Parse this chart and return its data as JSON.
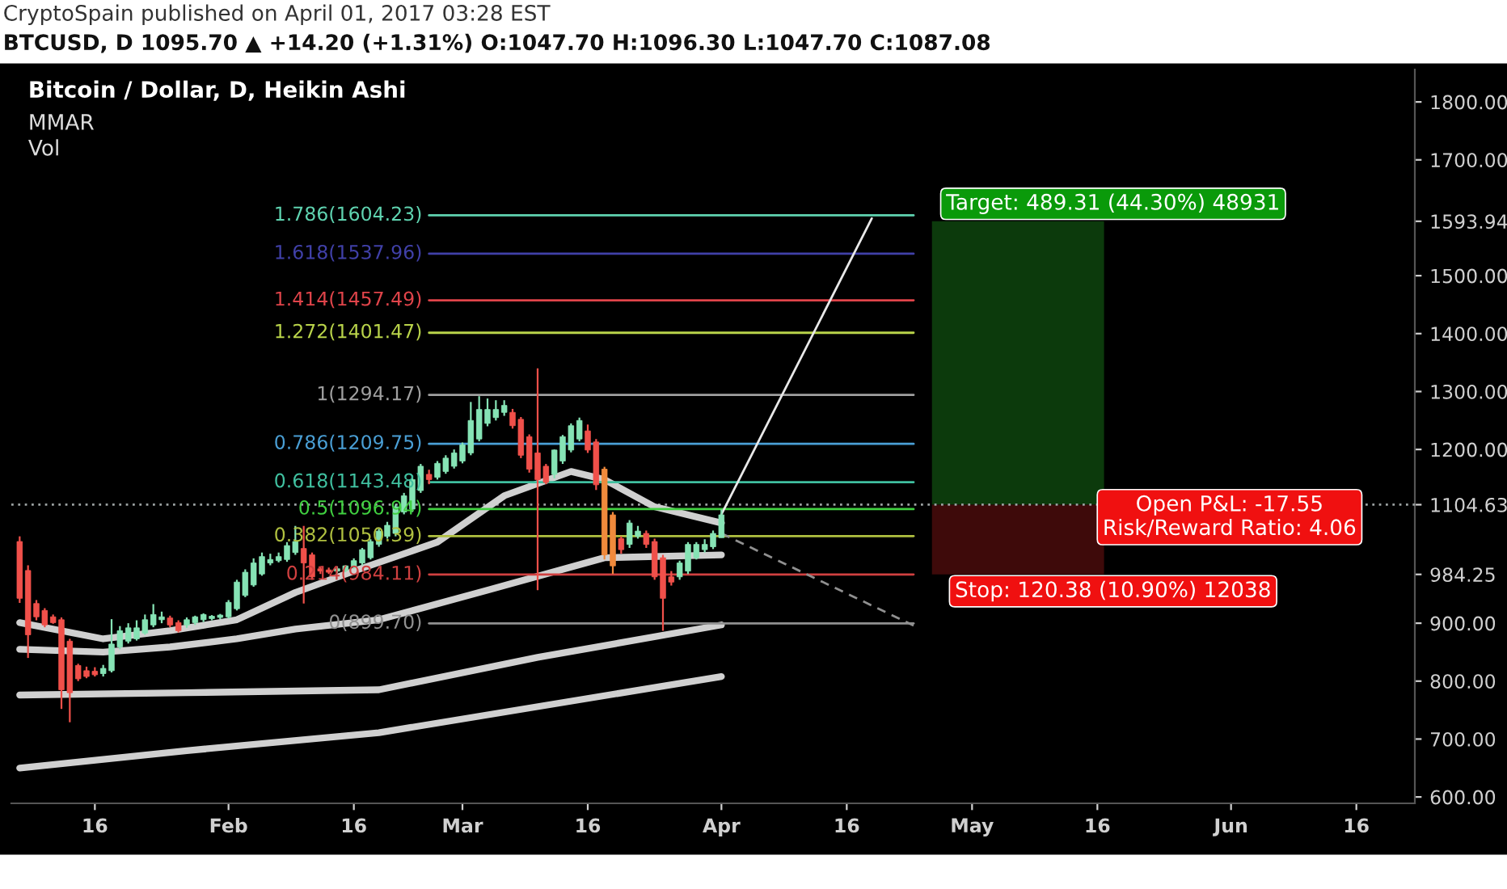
{
  "chart_data": {
    "type": "candlestick",
    "title": "Bitcoin / Dollar, D, Heikin Ashi",
    "x": [
      "2017-01-07",
      "2017-01-08",
      "2017-01-09",
      "2017-01-10",
      "2017-01-11",
      "2017-01-12",
      "2017-01-13",
      "2017-01-14",
      "2017-01-15",
      "2017-01-16",
      "2017-01-17",
      "2017-01-18",
      "2017-01-19",
      "2017-01-20",
      "2017-01-21",
      "2017-01-22",
      "2017-01-23",
      "2017-01-24",
      "2017-01-25",
      "2017-01-26",
      "2017-01-27",
      "2017-01-28",
      "2017-01-29",
      "2017-01-30",
      "2017-01-31",
      "2017-02-01",
      "2017-02-02",
      "2017-02-03",
      "2017-02-04",
      "2017-02-05",
      "2017-02-06",
      "2017-02-07",
      "2017-02-08",
      "2017-02-09",
      "2017-02-10",
      "2017-02-11",
      "2017-02-12",
      "2017-02-13",
      "2017-02-14",
      "2017-02-15",
      "2017-02-16",
      "2017-02-17",
      "2017-02-18",
      "2017-02-19",
      "2017-02-20",
      "2017-02-21",
      "2017-02-22",
      "2017-02-23",
      "2017-02-24",
      "2017-02-25",
      "2017-02-26",
      "2017-02-27",
      "2017-02-28",
      "2017-03-01",
      "2017-03-02",
      "2017-03-03",
      "2017-03-04",
      "2017-03-05",
      "2017-03-06",
      "2017-03-07",
      "2017-03-08",
      "2017-03-09",
      "2017-03-10",
      "2017-03-11",
      "2017-03-12",
      "2017-03-13",
      "2017-03-14",
      "2017-03-15",
      "2017-03-16",
      "2017-03-17",
      "2017-03-18",
      "2017-03-19",
      "2017-03-20",
      "2017-03-21",
      "2017-03-22",
      "2017-03-23",
      "2017-03-24",
      "2017-03-25",
      "2017-03-26",
      "2017-03-27",
      "2017-03-28",
      "2017-03-29",
      "2017-03-30",
      "2017-03-31",
      "2017-04-01"
    ],
    "ohlc": [
      [
        1041,
        1050,
        935,
        943
      ],
      [
        991,
        1000,
        840,
        880
      ],
      [
        934,
        940,
        905,
        911
      ],
      [
        922,
        926,
        893,
        897
      ],
      [
        911,
        915,
        899,
        901
      ],
      [
        906,
        910,
        752,
        785
      ],
      [
        869,
        873,
        729,
        780
      ],
      [
        827,
        830,
        800,
        804
      ],
      [
        818,
        825,
        805,
        808
      ],
      [
        817,
        824,
        808,
        811
      ],
      [
        813,
        828,
        808,
        822
      ],
      [
        818,
        907,
        815,
        864
      ],
      [
        859,
        895,
        855,
        887
      ],
      [
        869,
        900,
        865,
        892
      ],
      [
        873,
        905,
        870,
        892
      ],
      [
        883,
        915,
        880,
        906
      ],
      [
        897,
        933,
        893,
        915
      ],
      [
        906,
        920,
        900,
        911
      ],
      [
        909,
        913,
        893,
        897
      ],
      [
        901,
        905,
        884,
        887
      ],
      [
        897,
        910,
        892,
        906
      ],
      [
        901,
        913,
        897,
        911
      ],
      [
        906,
        917,
        902,
        915
      ],
      [
        908,
        914,
        905,
        912
      ],
      [
        910,
        916,
        907,
        914
      ],
      [
        911,
        940,
        908,
        936
      ],
      [
        925,
        975,
        922,
        971
      ],
      [
        948,
        993,
        945,
        988
      ],
      [
        966,
        1012,
        963,
        1004
      ],
      [
        985,
        1022,
        982,
        1015
      ],
      [
        1004,
        1020,
        1000,
        1010
      ],
      [
        1008,
        1022,
        1005,
        1015
      ],
      [
        1010,
        1040,
        1006,
        1034
      ],
      [
        1022,
        1068,
        1018,
        1041
      ],
      [
        1029,
        1068,
        934,
        1004
      ],
      [
        1018,
        1022,
        975,
        980
      ],
      [
        994,
        998,
        985,
        990
      ],
      [
        992,
        996,
        985,
        988
      ],
      [
        990,
        998,
        986,
        994
      ],
      [
        991,
        1000,
        988,
        999
      ],
      [
        997,
        1012,
        994,
        1008
      ],
      [
        1004,
        1030,
        1000,
        1027
      ],
      [
        1013,
        1045,
        1010,
        1041
      ],
      [
        1036,
        1063,
        1032,
        1059
      ],
      [
        1050,
        1075,
        1046,
        1069
      ],
      [
        1055,
        1105,
        1050,
        1101
      ],
      [
        1092,
        1125,
        1088,
        1120
      ],
      [
        1097,
        1155,
        1092,
        1148
      ],
      [
        1129,
        1175,
        1125,
        1171
      ],
      [
        1157,
        1165,
        1140,
        1148
      ],
      [
        1152,
        1180,
        1148,
        1176
      ],
      [
        1162,
        1190,
        1158,
        1185
      ],
      [
        1171,
        1200,
        1167,
        1194
      ],
      [
        1180,
        1212,
        1176,
        1208
      ],
      [
        1194,
        1282,
        1190,
        1250
      ],
      [
        1218,
        1292,
        1214,
        1269
      ],
      [
        1245,
        1288,
        1240,
        1269
      ],
      [
        1255,
        1285,
        1250,
        1269
      ],
      [
        1264,
        1285,
        1258,
        1276
      ],
      [
        1264,
        1270,
        1236,
        1241
      ],
      [
        1252,
        1256,
        1185,
        1190
      ],
      [
        1222,
        1226,
        1160,
        1166
      ],
      [
        1194,
        1340,
        957,
        1148
      ],
      [
        1171,
        1175,
        1140,
        1143
      ],
      [
        1157,
        1200,
        1150,
        1199
      ],
      [
        1180,
        1225,
        1175,
        1222
      ],
      [
        1199,
        1245,
        1195,
        1241
      ],
      [
        1218,
        1255,
        1214,
        1250
      ],
      [
        1232,
        1243,
        1194,
        1199
      ],
      [
        1213,
        1218,
        1130,
        1139
      ],
      [
        1166,
        1170,
        1010,
        1018
      ],
      [
        1087,
        1092,
        985,
        999
      ],
      [
        1046,
        1050,
        1020,
        1027
      ],
      [
        1036,
        1078,
        1030,
        1073
      ],
      [
        1050,
        1068,
        1046,
        1059
      ],
      [
        1055,
        1060,
        1030,
        1036
      ],
      [
        1041,
        1046,
        975,
        980
      ],
      [
        1013,
        1018,
        887,
        943
      ],
      [
        980,
        990,
        965,
        971
      ],
      [
        980,
        1008,
        975,
        1004
      ],
      [
        990,
        1040,
        985,
        1036
      ],
      [
        1013,
        1040,
        1010,
        1036
      ],
      [
        1027,
        1045,
        1022,
        1036
      ],
      [
        1032,
        1060,
        1028,
        1055
      ],
      [
        1047.7,
        1096.3,
        1047.7,
        1087.08
      ]
    ],
    "colors": [
      "#f0504a",
      "#f0504a",
      "#f0504a",
      "#f0504a",
      "#f0504a",
      "#f0504a",
      "#f0504a",
      "#f0504a",
      "#f0504a",
      "#f0504a",
      "#86e3b5",
      "#86e3b5",
      "#86e3b5",
      "#86e3b5",
      "#86e3b5",
      "#86e3b5",
      "#86e3b5",
      "#86e3b5",
      "#f0504a",
      "#f0504a",
      "#86e3b5",
      "#86e3b5",
      "#86e3b5",
      "#86e3b5",
      "#86e3b5",
      "#86e3b5",
      "#86e3b5",
      "#86e3b5",
      "#86e3b5",
      "#86e3b5",
      "#86e3b5",
      "#86e3b5",
      "#86e3b5",
      "#86e3b5",
      "#f0504a",
      "#f0504a",
      "#f0504a",
      "#f0504a",
      "#86e3b5",
      "#86e3b5",
      "#86e3b5",
      "#86e3b5",
      "#86e3b5",
      "#86e3b5",
      "#86e3b5",
      "#86e3b5",
      "#86e3b5",
      "#86e3b5",
      "#86e3b5",
      "#f0504a",
      "#86e3b5",
      "#86e3b5",
      "#86e3b5",
      "#86e3b5",
      "#86e3b5",
      "#86e3b5",
      "#86e3b5",
      "#86e3b5",
      "#86e3b5",
      "#f0504a",
      "#f0504a",
      "#f0504a",
      "#f0504a",
      "#f0504a",
      "#86e3b5",
      "#86e3b5",
      "#86e3b5",
      "#86e3b5",
      "#f0504a",
      "#f0504a",
      "#f08a3c",
      "#f08a3c",
      "#f0504a",
      "#86e3b5",
      "#86e3b5",
      "#f0504a",
      "#f0504a",
      "#f0504a",
      "#f0504a",
      "#86e3b5",
      "#86e3b5",
      "#86e3b5",
      "#86e3b5",
      "#86e3b5",
      "#86e3b5"
    ],
    "series": [
      {
        "type": "bar",
        "x": [
          "2017-05-06T12:00"
        ],
        "base": [
          1104.63
        ],
        "values": [
          489.31
        ],
        "color": "#0c3a0c"
      },
      {
        "type": "bar",
        "x": [
          "2017-05-06T12:00"
        ],
        "base": [
          984.25
        ],
        "values": [
          120.38
        ],
        "color": "#3e0a0a"
      },
      {
        "type": "line",
        "x": [
          "2017-01-07",
          "2017-01-17",
          "2017-01-25",
          "2017-02-02",
          "2017-02-09",
          "2017-02-16",
          "2017-02-26",
          "2017-03-06",
          "2017-03-14",
          "2017-03-18",
          "2017-03-24",
          "2017-04-01"
        ],
        "values": [
          901,
          873,
          887,
          906,
          953,
          990,
          1040,
          1120,
          1162,
          1148,
          1101,
          1073
        ],
        "color": "#d0d0d0"
      },
      {
        "type": "line",
        "x": [
          "2017-01-07",
          "2017-01-17",
          "2017-01-25",
          "2017-02-02",
          "2017-02-09",
          "2017-02-19",
          "2017-03-04",
          "2017-03-18",
          "2017-04-01"
        ],
        "values": [
          855,
          850,
          859,
          873,
          890,
          906,
          957,
          1013,
          1018
        ],
        "color": "#d0d0d0"
      },
      {
        "type": "line",
        "x": [
          "2017-01-07",
          "2017-01-27",
          "2017-02-19",
          "2017-03-10",
          "2017-04-01"
        ],
        "values": [
          776,
          780,
          785,
          841,
          897
        ],
        "color": "#d0d0d0"
      },
      {
        "type": "line",
        "x": [
          "2017-01-07",
          "2017-01-27",
          "2017-02-19",
          "2017-04-01"
        ],
        "values": [
          650,
          680,
          711,
          808
        ],
        "color": "#d0d0d0"
      },
      {
        "type": "line",
        "name": "1.786(1604.23)",
        "x": [
          "2017-02-25",
          "2017-04-24"
        ],
        "values": [
          1604.23,
          1604.23
        ],
        "color": "#5fd3b0"
      },
      {
        "type": "line",
        "name": "1.618(1537.96)",
        "x": [
          "2017-02-25",
          "2017-04-24"
        ],
        "values": [
          1537.96,
          1537.96
        ],
        "color": "#4040a8"
      },
      {
        "type": "line",
        "name": "1.414(1457.49)",
        "x": [
          "2017-02-25",
          "2017-04-24"
        ],
        "values": [
          1457.49,
          1457.49
        ],
        "color": "#e0444a"
      },
      {
        "type": "line",
        "name": "1.272(1401.47)",
        "x": [
          "2017-02-25",
          "2017-04-24"
        ],
        "values": [
          1401.47,
          1401.47
        ],
        "color": "#b9d34a"
      },
      {
        "type": "line",
        "name": "1(1294.17)",
        "x": [
          "2017-02-25",
          "2017-04-24"
        ],
        "values": [
          1294.17,
          1294.17
        ],
        "color": "#a0a0a0"
      },
      {
        "type": "line",
        "name": "0.786(1209.75)",
        "x": [
          "2017-02-25",
          "2017-04-24"
        ],
        "values": [
          1209.75,
          1209.75
        ],
        "color": "#4a9fd5"
      },
      {
        "type": "line",
        "name": "0.618(1143.48)",
        "x": [
          "2017-02-25",
          "2017-04-24"
        ],
        "values": [
          1143.48,
          1143.48
        ],
        "color": "#40c0a0"
      },
      {
        "type": "line",
        "name": "0.5(1096.94)",
        "x": [
          "2017-02-25",
          "2017-04-24"
        ],
        "values": [
          1096.94,
          1096.94
        ],
        "color": "#40d040"
      },
      {
        "type": "line",
        "name": "0.382(1050.39)",
        "x": [
          "2017-02-25",
          "2017-04-24"
        ],
        "values": [
          1050.39,
          1050.39
        ],
        "color": "#b0c040"
      },
      {
        "type": "line",
        "name": "0.214(984.11)",
        "x": [
          "2017-02-25",
          "2017-04-24"
        ],
        "values": [
          984.11,
          984.11
        ],
        "color": "#d04040"
      },
      {
        "type": "line",
        "name": "0(899.70)",
        "x": [
          "2017-02-25",
          "2017-04-24"
        ],
        "values": [
          899.7,
          899.7
        ],
        "color": "#909090"
      },
      {
        "type": "line",
        "x": [
          "2017-04-01",
          "2017-04-19"
        ],
        "values": [
          1088,
          1599
        ],
        "color": "#e8e8e8"
      },
      {
        "type": "line",
        "x": [
          "2017-04-01",
          "2017-04-24"
        ],
        "values": [
          1055,
          896
        ],
        "color": "#909090",
        "line_style": "dashed"
      }
    ],
    "ref_lines": [
      {
        "axis": "y",
        "value": 1104.63,
        "color": "#9aa0a0",
        "line_style": "dotted"
      }
    ],
    "xlim": [
      "2017-01-06",
      "2017-06-23"
    ],
    "xticks": [
      {
        "value": "2017-01-16",
        "label": "16"
      },
      {
        "value": "2017-02-01",
        "label": "Feb"
      },
      {
        "value": "2017-02-16",
        "label": "16"
      },
      {
        "value": "2017-03-01",
        "label": "Mar"
      },
      {
        "value": "2017-03-16",
        "label": "16"
      },
      {
        "value": "2017-04-01",
        "label": "Apr"
      },
      {
        "value": "2017-04-16",
        "label": "16"
      },
      {
        "value": "2017-05-01",
        "label": "May"
      },
      {
        "value": "2017-05-16",
        "label": "16"
      },
      {
        "value": "2017-06-01",
        "label": "Jun"
      },
      {
        "value": "2017-06-16",
        "label": "16"
      }
    ],
    "ylim": [
      589,
      1856
    ],
    "yticks": [
      {
        "value": 600,
        "label": "600.00"
      },
      {
        "value": 700,
        "label": "700.00"
      },
      {
        "value": 800,
        "label": "800.00"
      },
      {
        "value": 900,
        "label": "900.00"
      },
      {
        "value": 984.25,
        "label": "984.25"
      },
      {
        "value": 1104.63,
        "label": "1104.63"
      },
      {
        "value": 1200,
        "label": "1200.00"
      },
      {
        "value": 1300,
        "label": "1300.00"
      },
      {
        "value": 1400,
        "label": "1400.00"
      },
      {
        "value": 1500,
        "label": "1500.00"
      },
      {
        "value": 1593.94,
        "label": "1593.94"
      },
      {
        "value": 1700,
        "label": "1700.00"
      },
      {
        "value": 1800,
        "label": "1800.00"
      }
    ],
    "annotations": [
      "CryptoSpain published on April 01, 2017 03:28 EST",
      "BTCUSD, D 1095.70 ▲ +14.20 (+1.31%) O:1047.70 H:1096.30 L:1047.70 C:1087.08",
      "MMAR",
      "Vol",
      "Target: 489.31 (44.30%) 48931",
      "Open P&L: -17.55\nRisk/Reward Ratio: 4.06",
      "Stop: 120.38 (10.90%) 12038"
    ],
    "grid": false,
    "legend": false
  }
}
